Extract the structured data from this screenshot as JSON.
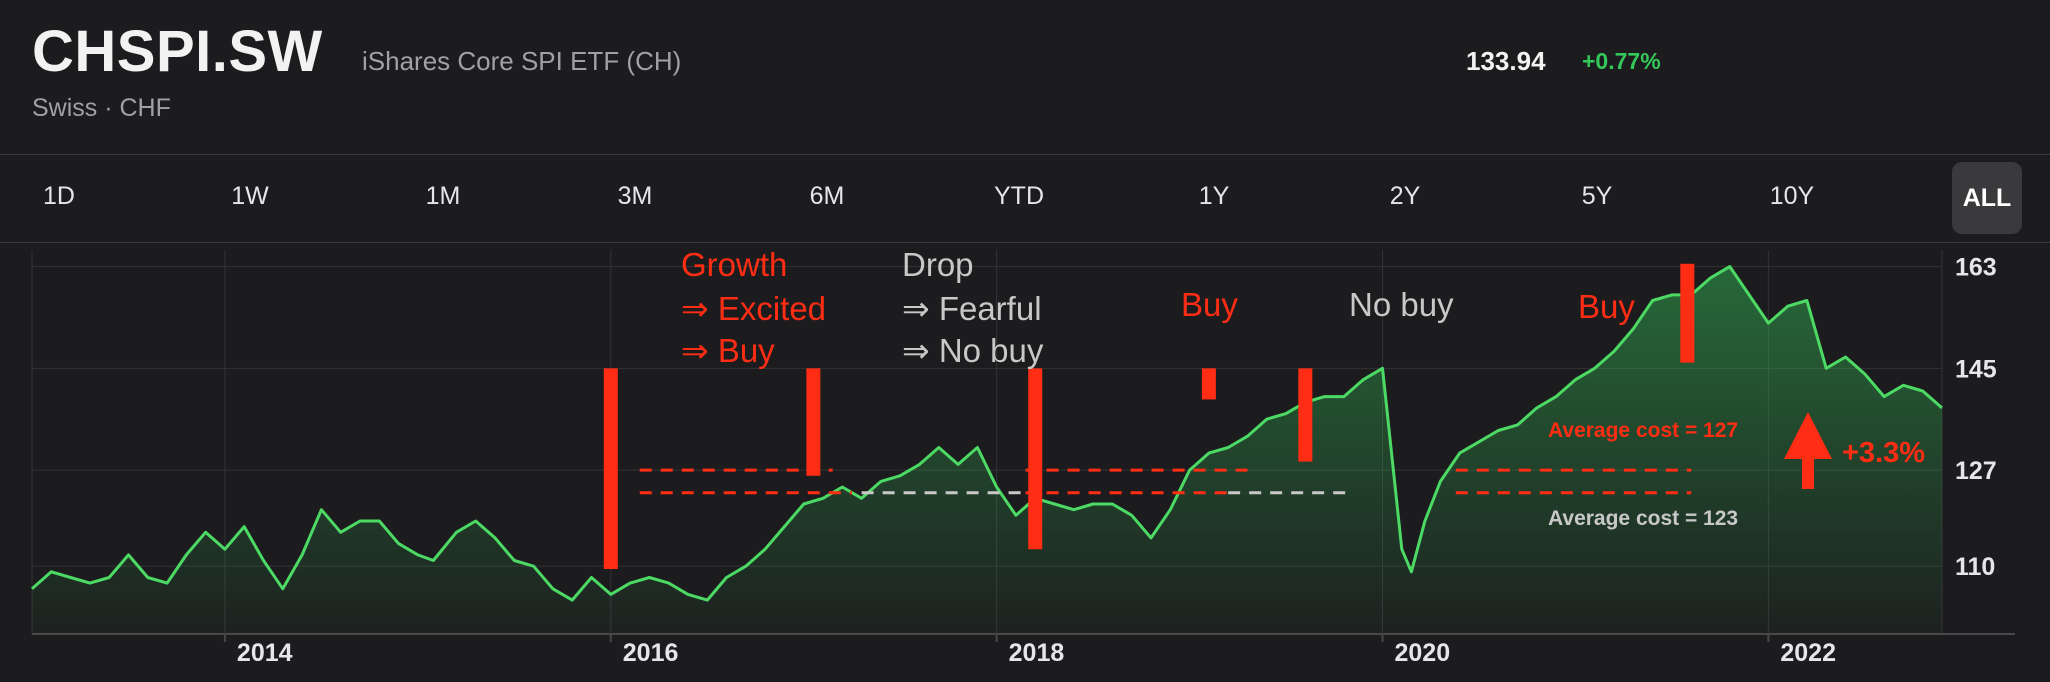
{
  "header": {
    "ticker": "CHSPI.SW",
    "fund_name": "iShares Core SPI ETF (CH)",
    "exchange": "Swiss · CHF",
    "price": "133.94",
    "change": "+0.77%"
  },
  "range_tabs": [
    "1D",
    "1W",
    "1M",
    "3M",
    "6M",
    "YTD",
    "1Y",
    "2Y",
    "5Y",
    "10Y"
  ],
  "range_active": "ALL",
  "colors": {
    "line": "#4cd964",
    "accent": "#ff2d14",
    "muted": "#c8c8c8"
  },
  "chart_data": {
    "type": "line",
    "xlim": [
      2013.0,
      2022.9
    ],
    "ylim": [
      98,
      167
    ],
    "x_ticks": [
      2014,
      2016,
      2018,
      2020,
      2022
    ],
    "x_tick_labels": [
      "2014",
      "2016",
      "2018",
      "2020",
      "2022"
    ],
    "y_ticks": [
      110,
      127,
      145,
      163
    ],
    "y_tick_labels": [
      "110",
      "127",
      "145",
      "163"
    ],
    "series": [
      {
        "x": [
          2013.0,
          2013.1,
          2013.2,
          2013.3,
          2013.4,
          2013.5,
          2013.6,
          2013.7,
          2013.8,
          2013.9,
          2014.0,
          2014.1,
          2014.2,
          2014.3,
          2014.4,
          2014.5,
          2014.6,
          2014.7,
          2014.8,
          2014.9,
          2015.0,
          2015.08,
          2015.2,
          2015.3,
          2015.4,
          2015.5,
          2015.6,
          2015.7,
          2015.8,
          2015.9,
          2016.0,
          2016.1,
          2016.2,
          2016.3,
          2016.4,
          2016.5,
          2016.6,
          2016.7,
          2016.8,
          2016.9,
          2017.0,
          2017.1,
          2017.2,
          2017.3,
          2017.4,
          2017.5,
          2017.6,
          2017.7,
          2017.8,
          2017.9,
          2018.0,
          2018.1,
          2018.2,
          2018.3,
          2018.4,
          2018.5,
          2018.6,
          2018.7,
          2018.8,
          2018.9,
          2019.0,
          2019.1,
          2019.2,
          2019.3,
          2019.4,
          2019.5,
          2019.6,
          2019.7,
          2019.8,
          2019.9,
          2020.0,
          2020.1,
          2020.15,
          2020.22,
          2020.3,
          2020.4,
          2020.5,
          2020.6,
          2020.7,
          2020.8,
          2020.9,
          2021.0,
          2021.1,
          2021.2,
          2021.3,
          2021.4,
          2021.5,
          2021.6,
          2021.7,
          2021.8,
          2021.9,
          2022.0,
          2022.1,
          2022.2,
          2022.3,
          2022.4,
          2022.5,
          2022.6,
          2022.7,
          2022.8,
          2022.9
        ],
        "values": [
          106,
          109,
          108,
          107,
          108,
          112,
          108,
          107,
          112,
          116,
          113,
          117,
          111,
          106,
          112,
          120,
          116,
          118,
          118,
          114,
          112,
          111,
          116,
          118,
          115,
          111,
          110,
          106,
          104,
          108,
          105,
          107,
          108,
          107,
          105,
          104,
          108,
          110,
          113,
          117,
          121,
          122,
          124,
          122,
          125,
          126,
          128,
          131,
          128,
          131,
          124,
          119,
          122,
          121,
          120,
          121,
          121,
          119,
          115,
          120,
          127,
          130,
          131,
          133,
          136,
          137,
          139,
          140,
          140,
          143,
          145,
          113,
          109,
          118,
          125,
          130,
          132,
          134,
          135,
          138,
          140,
          143,
          145,
          148,
          152,
          157,
          158,
          158,
          161,
          163,
          158,
          153,
          156,
          157,
          145,
          147,
          144,
          140,
          142,
          141,
          138
        ]
      }
    ],
    "annotations": [
      {
        "text": "Growth",
        "color": "accent"
      },
      {
        "text": "⇒ Excited",
        "color": "accent"
      },
      {
        "text": "⇒ Buy",
        "color": "accent"
      },
      {
        "text": "Drop",
        "color": "muted"
      },
      {
        "text": "⇒ Fearful",
        "color": "muted"
      },
      {
        "text": "⇒ No buy",
        "color": "muted"
      },
      {
        "text": "Buy",
        "color": "accent"
      },
      {
        "text": "No buy",
        "color": "muted"
      },
      {
        "text": "Buy",
        "color": "accent"
      },
      {
        "text": "Average cost = 127",
        "color": "accent"
      },
      {
        "text": "Average cost = 123",
        "color": "muted"
      },
      {
        "text": "+3.3%",
        "color": "accent"
      }
    ],
    "avg_cost_lines": [
      127,
      123
    ]
  }
}
